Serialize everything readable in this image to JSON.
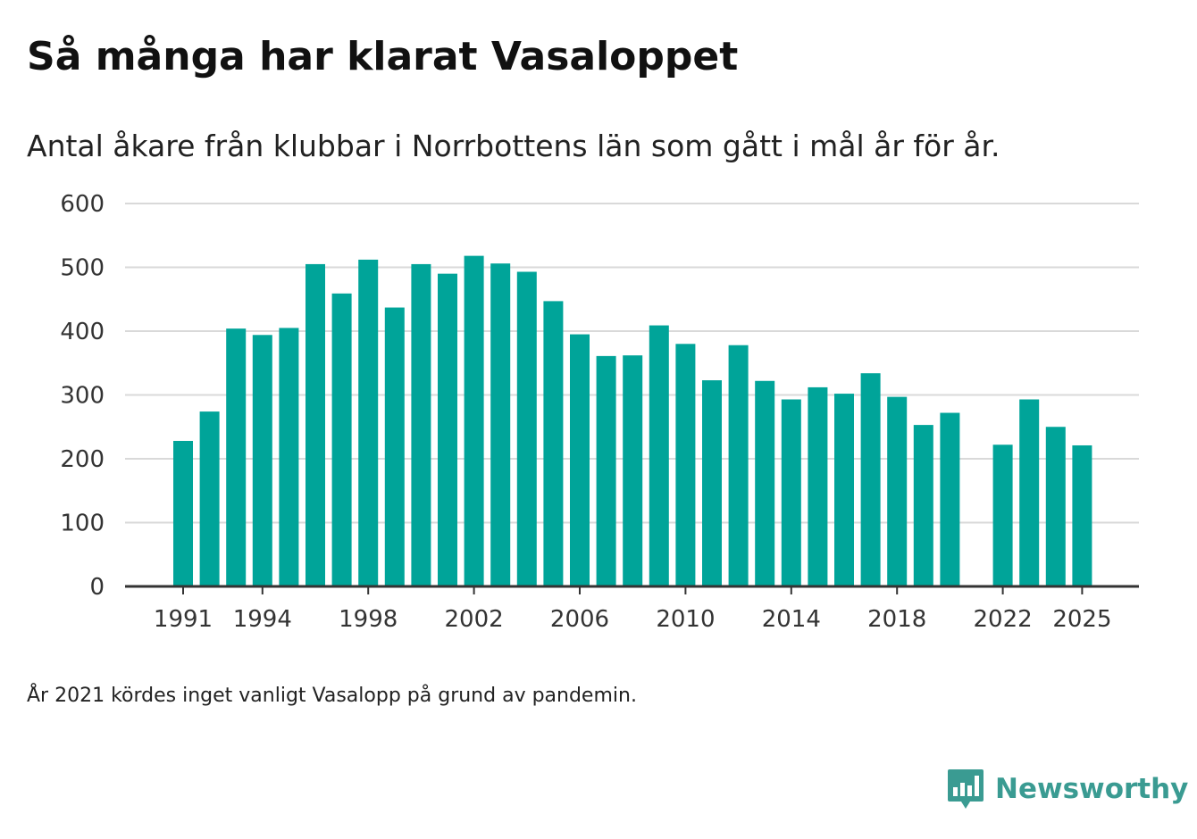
{
  "title": "Så många har klarat Vasaloppet",
  "subtitle": "Antal åkare från klubbar i Norrbottens län som gått i mål år för år.",
  "note": "År 2021 kördes inget vanligt Vasalopp på grund av pandemin.",
  "brand": {
    "name": "Newsworthy",
    "color": "#3a9b92",
    "icon": "newsworthy-logo-icon"
  },
  "chart_data": {
    "type": "bar",
    "title": "Så många har klarat Vasaloppet",
    "subtitle": "Antal åkare från klubbar i Norrbottens län som gått i mål år för år.",
    "xlabel": "",
    "ylabel": "",
    "ylim": [
      0,
      600
    ],
    "yticks": [
      0,
      100,
      200,
      300,
      400,
      500,
      600
    ],
    "xtick_labels": [
      "1991",
      "1994",
      "1998",
      "2002",
      "2006",
      "2010",
      "2014",
      "2018",
      "2022",
      "2025"
    ],
    "grid": true,
    "bar_color": "#00a499",
    "categories": [
      "1991",
      "1992",
      "1993",
      "1994",
      "1995",
      "1996",
      "1997",
      "1998",
      "1999",
      "2000",
      "2001",
      "2002",
      "2003",
      "2004",
      "2005",
      "2006",
      "2007",
      "2008",
      "2009",
      "2010",
      "2011",
      "2012",
      "2013",
      "2014",
      "2015",
      "2016",
      "2017",
      "2018",
      "2019",
      "2020",
      "2021",
      "2022",
      "2023",
      "2024",
      "2025"
    ],
    "values": [
      228,
      274,
      404,
      394,
      405,
      505,
      459,
      512,
      437,
      505,
      490,
      518,
      506,
      493,
      447,
      395,
      361,
      362,
      409,
      380,
      323,
      378,
      322,
      293,
      312,
      302,
      334,
      297,
      253,
      272,
      null,
      222,
      293,
      250,
      221
    ]
  }
}
